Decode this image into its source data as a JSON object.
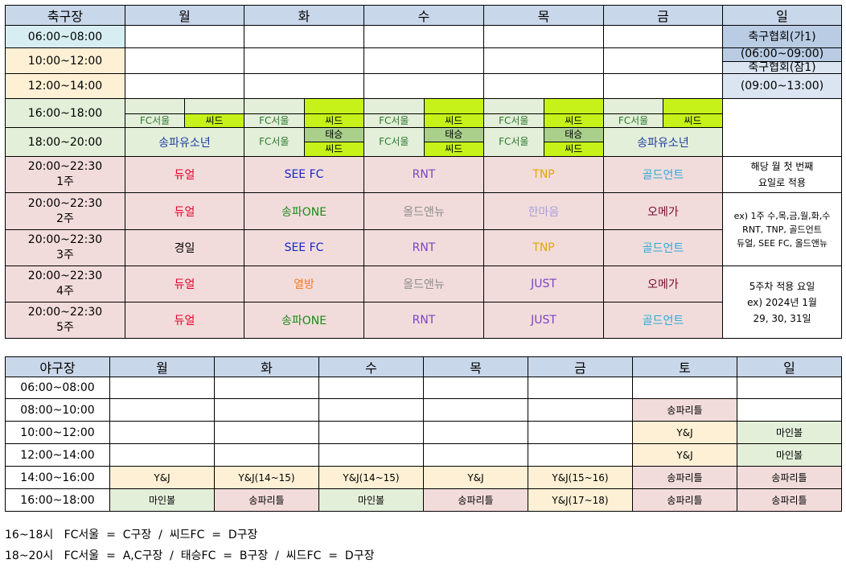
{
  "soccer": {
    "header": [
      "축구장",
      "월",
      "화",
      "수",
      "목",
      "금",
      "일"
    ],
    "morning": [
      {
        "time": "06:00~08:00"
      },
      {
        "time": "10:00~12:00"
      },
      {
        "time": "12:00~14:00"
      }
    ],
    "sunday_blocks": [
      {
        "line1": "축구협회(가1)",
        "line2": "(06:00~09:00)"
      },
      {
        "line1": "축구협회(잠1)",
        "line2": "(09:00~13:00)"
      }
    ],
    "slot16": {
      "time": "16:00~18:00",
      "cell_a": "FC서울",
      "cell_b": "씨드"
    },
    "slot18": {
      "time": "18:00~20:00",
      "mon": "송파유소년",
      "fc": "FC서울",
      "taeseung": "태승",
      "seed": "씨드",
      "fri": "송파유소년"
    },
    "weeks": [
      {
        "time": "20:00~22:30",
        "week": "1주",
        "cells": [
          "듀얼",
          "SEE FC",
          "RNT",
          "TNP",
          "골드언트"
        ]
      },
      {
        "time": "20:00~22:30",
        "week": "2주",
        "cells": [
          "듀얼",
          "송파ONE",
          "올드앤뉴",
          "한마음",
          "오메가"
        ]
      },
      {
        "time": "20:00~22:30",
        "week": "3주",
        "cells": [
          "경일",
          "SEE FC",
          "RNT",
          "TNP",
          "골드언트"
        ]
      },
      {
        "time": "20:00~22:30",
        "week": "4주",
        "cells": [
          "듀얼",
          "열방",
          "올드앤뉴",
          "JUST",
          "오메가"
        ]
      },
      {
        "time": "20:00~22:30",
        "week": "5주",
        "cells": [
          "듀얼",
          "송파ONE",
          "RNT",
          "JUST",
          "골드언트"
        ]
      }
    ],
    "notes": {
      "n1_l1": "해당 월 첫 번째",
      "n1_l2": "요일로 적용",
      "n2_l1": "ex) 1주 수,목,금,월,화,수",
      "n2_l2": "RNT, TNP, 골드언트",
      "n2_l3": "듀얼, SEE FC, 올드앤뉴",
      "n3_l1": "5주차 적용 요일",
      "n3_l2": "ex) 2024년 1월",
      "n3_l3": "29, 30, 31일"
    },
    "colors": {
      "week_time_bg": "#f2dcdb",
      "seed_bg": "#c6f21a",
      "taeseung_bg": "#a9cf8b"
    }
  },
  "baseball": {
    "header": [
      "야구장",
      "월",
      "화",
      "수",
      "목",
      "금",
      "토",
      "일"
    ],
    "rows": [
      {
        "time": "06:00~08:00",
        "cells": [
          "",
          "",
          "",
          "",
          "",
          "",
          ""
        ]
      },
      {
        "time": "08:00~10:00",
        "cells": [
          "",
          "",
          "",
          "",
          "",
          "송파리틀",
          ""
        ]
      },
      {
        "time": "10:00~12:00",
        "cells": [
          "",
          "",
          "",
          "",
          "",
          "Y&J",
          "마인볼"
        ]
      },
      {
        "time": "12:00~14:00",
        "cells": [
          "",
          "",
          "",
          "",
          "",
          "Y&J",
          "마인볼"
        ]
      },
      {
        "time": "14:00~16:00",
        "cells": [
          "Y&J",
          "Y&J(14~15)",
          "Y&J(14~15)",
          "Y&J",
          "Y&J(15~16)",
          "송파리틀",
          "송파리틀"
        ]
      },
      {
        "time": "16:00~18:00",
        "cells": [
          "마인볼",
          "송파리틀",
          "마인볼",
          "송파리틀",
          "Y&J(17~18)",
          "송파리틀",
          "송파리틀"
        ]
      }
    ]
  },
  "footer": {
    "line1": "16~18시   FC서울  =  C구장  /  씨드FC  =  D구장",
    "line2": "18~20시   FC서울  =  A,C구장  /  태승FC  =  B구장  /  씨드FC  =  D구장"
  }
}
